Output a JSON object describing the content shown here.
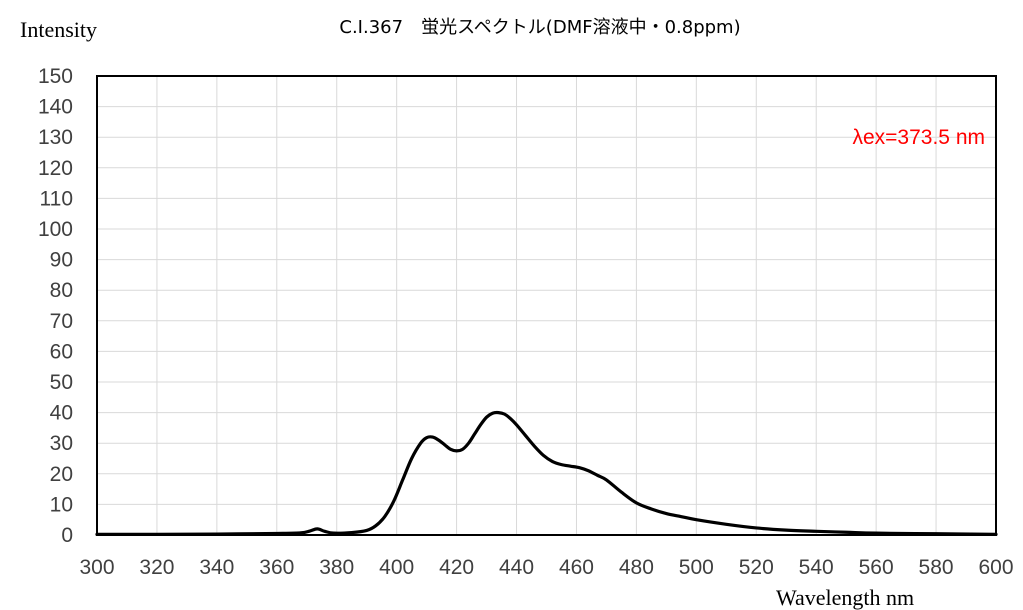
{
  "chart_data": {
    "type": "line",
    "title": "C.I.367　蛍光スペクトル(DMF溶液中・0.8ppm)",
    "ylabel": "Intensity",
    "xlabel": "Wavelength nm",
    "annotation": "λex=373.5 nm",
    "annotation_color": "#ff0000",
    "line_color": "#000000",
    "grid": true,
    "xlim": [
      300,
      600
    ],
    "ylim": [
      0,
      150
    ],
    "xticks": [
      300,
      320,
      340,
      360,
      380,
      400,
      420,
      440,
      460,
      480,
      500,
      520,
      540,
      560,
      580,
      600
    ],
    "yticks": [
      0,
      10,
      20,
      30,
      40,
      50,
      60,
      70,
      80,
      90,
      100,
      110,
      120,
      130,
      140,
      150
    ],
    "series": [
      {
        "x": [
          300,
          320,
          340,
          360,
          368,
          371,
          373.5,
          376,
          379,
          385,
          390,
          393,
          396,
          399,
          402,
          405,
          408,
          410,
          412,
          414,
          416,
          418,
          420,
          422,
          424,
          426,
          428,
          430,
          432,
          434,
          436,
          438,
          440,
          443,
          446,
          449,
          452,
          455,
          458,
          461,
          464,
          467,
          470,
          475,
          480,
          485,
          490,
          495,
          500,
          510,
          520,
          530,
          540,
          550,
          560,
          580,
          600
        ],
        "y": [
          0.2,
          0.2,
          0.3,
          0.5,
          0.7,
          1.3,
          2.0,
          1.2,
          0.6,
          0.8,
          1.5,
          3.0,
          6.0,
          11.0,
          18.0,
          25.0,
          30.0,
          31.8,
          32.0,
          31.0,
          29.5,
          28.0,
          27.5,
          28.0,
          30.0,
          33.0,
          36.0,
          38.5,
          39.8,
          40.0,
          39.5,
          38.0,
          36.0,
          32.5,
          29.0,
          26.0,
          24.0,
          23.0,
          22.5,
          22.0,
          21.0,
          19.5,
          18.0,
          14.0,
          10.5,
          8.5,
          7.0,
          6.0,
          5.0,
          3.5,
          2.3,
          1.6,
          1.2,
          0.9,
          0.6,
          0.4,
          0.2
        ]
      }
    ]
  }
}
